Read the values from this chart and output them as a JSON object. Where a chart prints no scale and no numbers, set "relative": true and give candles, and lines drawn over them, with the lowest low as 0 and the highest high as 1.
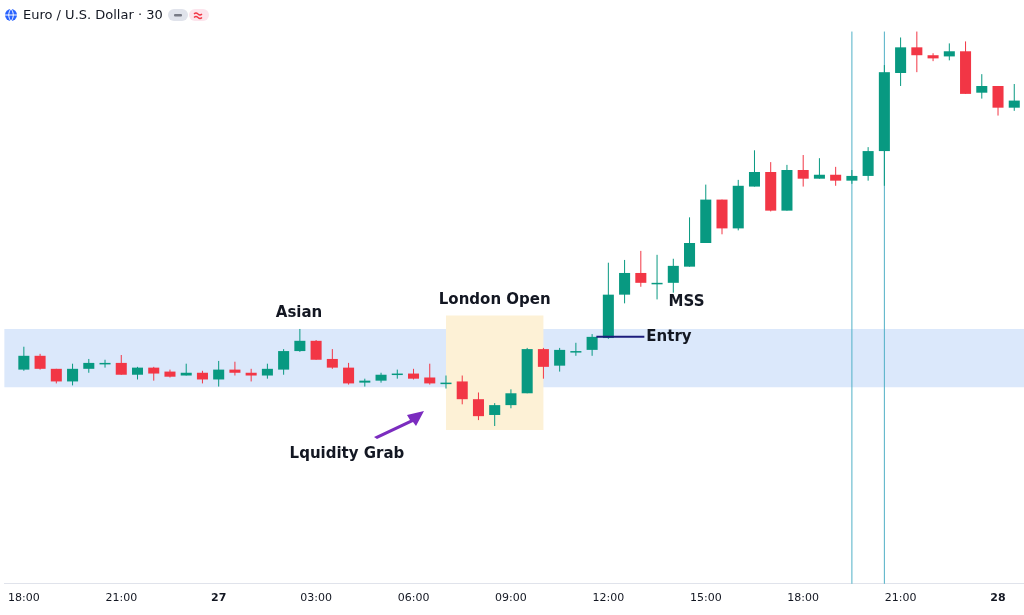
{
  "chart_data": {
    "type": "candlestick",
    "title": "Euro / U.S. Dollar · 30",
    "relative": true,
    "legend": false,
    "grid": false,
    "tick_labels": "x",
    "x": [
      "--01-26T18:00",
      "--01-26T18:30",
      "--01-26T19:00",
      "--01-26T19:30",
      "--01-26T20:00",
      "--01-26T20:30",
      "--01-26T21:00",
      "--01-26T21:30",
      "--01-26T22:00",
      "--01-26T22:30",
      "--01-26T23:00",
      "--01-26T23:30",
      "--01-27T00:00",
      "--01-27T00:30",
      "--01-27T01:00",
      "--01-27T01:30",
      "--01-27T02:00",
      "--01-27T02:30",
      "--01-27T03:00",
      "--01-27T03:30",
      "--01-27T04:00",
      "--01-27T04:30",
      "--01-27T05:00",
      "--01-27T05:30",
      "--01-27T06:00",
      "--01-27T06:30",
      "--01-27T07:00",
      "--01-27T07:30",
      "--01-27T08:00",
      "--01-27T08:30",
      "--01-27T09:00",
      "--01-27T09:30",
      "--01-27T10:00",
      "--01-27T10:30",
      "--01-27T11:00",
      "--01-27T11:30",
      "--01-27T12:00",
      "--01-27T12:30",
      "--01-27T13:00",
      "--01-27T13:30",
      "--01-27T14:00",
      "--01-27T14:30",
      "--01-27T15:00",
      "--01-27T15:30",
      "--01-27T16:00",
      "--01-27T16:30",
      "--01-27T17:00",
      "--01-27T17:30",
      "--01-27T18:00",
      "--01-27T18:30",
      "--01-27T19:00",
      "--01-27T19:30",
      "--01-27T20:00",
      "--01-27T20:30",
      "--01-27T21:00",
      "--01-27T21:30",
      "--01-27T22:00",
      "--01-27T22:30",
      "--01-27T23:00",
      "--01-27T23:30",
      "--01-28T00:00",
      "--01-28T00:30"
    ],
    "ohlc": [
      [
        0.143,
        0.201,
        0.14,
        0.178
      ],
      [
        0.178,
        0.183,
        0.143,
        0.145
      ],
      [
        0.145,
        0.145,
        0.108,
        0.113
      ],
      [
        0.113,
        0.158,
        0.103,
        0.145
      ],
      [
        0.145,
        0.17,
        0.135,
        0.16
      ],
      [
        0.158,
        0.168,
        0.148,
        0.16
      ],
      [
        0.16,
        0.18,
        0.13,
        0.13
      ],
      [
        0.13,
        0.15,
        0.118,
        0.148
      ],
      [
        0.148,
        0.15,
        0.115,
        0.133
      ],
      [
        0.138,
        0.143,
        0.123,
        0.125
      ],
      [
        0.128,
        0.158,
        0.128,
        0.135
      ],
      [
        0.135,
        0.14,
        0.108,
        0.118
      ],
      [
        0.118,
        0.165,
        0.1,
        0.143
      ],
      [
        0.143,
        0.163,
        0.128,
        0.135
      ],
      [
        0.135,
        0.145,
        0.113,
        0.128
      ],
      [
        0.128,
        0.158,
        0.12,
        0.145
      ],
      [
        0.143,
        0.195,
        0.13,
        0.19
      ],
      [
        0.19,
        0.246,
        0.188,
        0.216
      ],
      [
        0.216,
        0.218,
        0.168,
        0.168
      ],
      [
        0.17,
        0.195,
        0.145,
        0.148
      ],
      [
        0.148,
        0.16,
        0.105,
        0.108
      ],
      [
        0.11,
        0.12,
        0.1,
        0.115
      ],
      [
        0.115,
        0.135,
        0.11,
        0.13
      ],
      [
        0.13,
        0.143,
        0.12,
        0.133
      ],
      [
        0.133,
        0.145,
        0.118,
        0.12
      ],
      [
        0.123,
        0.158,
        0.105,
        0.108
      ],
      [
        0.108,
        0.128,
        0.095,
        0.11
      ],
      [
        0.113,
        0.128,
        0.055,
        0.068
      ],
      [
        0.068,
        0.085,
        0.015,
        0.025
      ],
      [
        0.028,
        0.058,
        0,
        0.053
      ],
      [
        0.053,
        0.093,
        0.045,
        0.083
      ],
      [
        0.083,
        0.198,
        0.083,
        0.195
      ],
      [
        0.195,
        0.198,
        0.12,
        0.15
      ],
      [
        0.153,
        0.198,
        0.138,
        0.193
      ],
      [
        0.188,
        0.211,
        0.178,
        0.19
      ],
      [
        0.193,
        0.233,
        0.178,
        0.226
      ],
      [
        0.223,
        0.414,
        0.221,
        0.333
      ],
      [
        0.333,
        0.421,
        0.311,
        0.388
      ],
      [
        0.388,
        0.444,
        0.353,
        0.363
      ],
      [
        0.361,
        0.434,
        0.321,
        0.363
      ],
      [
        0.363,
        0.424,
        0.338,
        0.406
      ],
      [
        0.404,
        0.529,
        0.404,
        0.464
      ],
      [
        0.464,
        0.612,
        0.464,
        0.574
      ],
      [
        0.574,
        0.574,
        0.486,
        0.501
      ],
      [
        0.501,
        0.624,
        0.496,
        0.609
      ],
      [
        0.607,
        0.699,
        0.607,
        0.644
      ],
      [
        0.644,
        0.669,
        0.544,
        0.546
      ],
      [
        0.546,
        0.662,
        0.546,
        0.649
      ],
      [
        0.649,
        0.687,
        0.607,
        0.627
      ],
      [
        0.627,
        0.679,
        0.627,
        0.637
      ],
      [
        0.637,
        0.657,
        0.609,
        0.622
      ],
      [
        0.622,
        0.649,
        0.614,
        0.634
      ],
      [
        0.634,
        0.707,
        0.622,
        0.697
      ],
      [
        0.697,
        0.915,
        0.609,
        0.897
      ],
      [
        0.895,
        0.985,
        0.862,
        0.96
      ],
      [
        0.96,
        1,
        0.897,
        0.94
      ],
      [
        0.94,
        0.945,
        0.925,
        0.932
      ],
      [
        0.937,
        0.97,
        0.927,
        0.95
      ],
      [
        0.95,
        0.975,
        0.842,
        0.842
      ],
      [
        0.845,
        0.892,
        0.83,
        0.862
      ],
      [
        0.862,
        0.862,
        0.787,
        0.807
      ],
      [
        0.807,
        0.867,
        0.799,
        0.825
      ]
    ],
    "colors": [
      "#089981",
      "#f23645",
      "#f23645",
      "#089981",
      "#089981",
      "#089981",
      "#f23645",
      "#089981",
      "#f23645",
      "#f23645",
      "#089981",
      "#f23645",
      "#089981",
      "#f23645",
      "#f23645",
      "#089981",
      "#089981",
      "#089981",
      "#f23645",
      "#f23645",
      "#f23645",
      "#089981",
      "#089981",
      "#089981",
      "#f23645",
      "#f23645",
      "#089981",
      "#f23645",
      "#f23645",
      "#089981",
      "#089981",
      "#089981",
      "#f23645",
      "#089981",
      "#089981",
      "#089981",
      "#089981",
      "#089981",
      "#f23645",
      "#089981",
      "#089981",
      "#089981",
      "#089981",
      "#f23645",
      "#089981",
      "#089981",
      "#f23645",
      "#089981",
      "#f23645",
      "#089981",
      "#f23645",
      "#089981",
      "#089981",
      "#089981",
      "#089981",
      "#f23645",
      "#f23645",
      "#089981",
      "#f23645",
      "#089981",
      "#f23645",
      "#089981"
    ],
    "xlim": [
      "--01-26T17:24",
      "--01-28T00:48"
    ],
    "xticks": [
      {
        "value": "--01-26T18:00",
        "label": "18:00"
      },
      {
        "value": "--01-26T21:00",
        "label": "21:00"
      },
      {
        "value": "--01-27",
        "label": "27"
      },
      {
        "value": "--01-27T03:00",
        "label": "03:00"
      },
      {
        "value": "--01-27T06:00",
        "label": "06:00"
      },
      {
        "value": "--01-27T09:00",
        "label": "09:00"
      },
      {
        "value": "--01-27T12:00",
        "label": "12:00"
      },
      {
        "value": "--01-27T15:00",
        "label": "15:00"
      },
      {
        "value": "--01-27T18:00",
        "label": "18:00"
      },
      {
        "value": "--01-27T21:00",
        "label": "21:00"
      },
      {
        "value": "--01-28",
        "label": "28"
      }
    ],
    "bands": [
      {
        "axis": "y",
        "from": 0.098,
        "to": 0.246,
        "color": "#dbe8fb"
      },
      {
        "axis": "x",
        "from": "--01-27T07:00",
        "to": "--01-27T10:00",
        "label": "London Open",
        "color": "#fdf1d6"
      }
    ],
    "ref_lines": [
      {
        "axis": "x",
        "value": "--01-27T19:30",
        "color": "#4fb0c6"
      },
      {
        "axis": "x",
        "value": "--01-27T20:30",
        "color": "#4fb0c6"
      },
      {
        "axis": "y",
        "value": 0.226,
        "label": "Entry",
        "color": "#1c1c7c"
      }
    ],
    "annotations": [
      "Asian",
      "Lquidity Grab",
      "MSS"
    ]
  }
}
